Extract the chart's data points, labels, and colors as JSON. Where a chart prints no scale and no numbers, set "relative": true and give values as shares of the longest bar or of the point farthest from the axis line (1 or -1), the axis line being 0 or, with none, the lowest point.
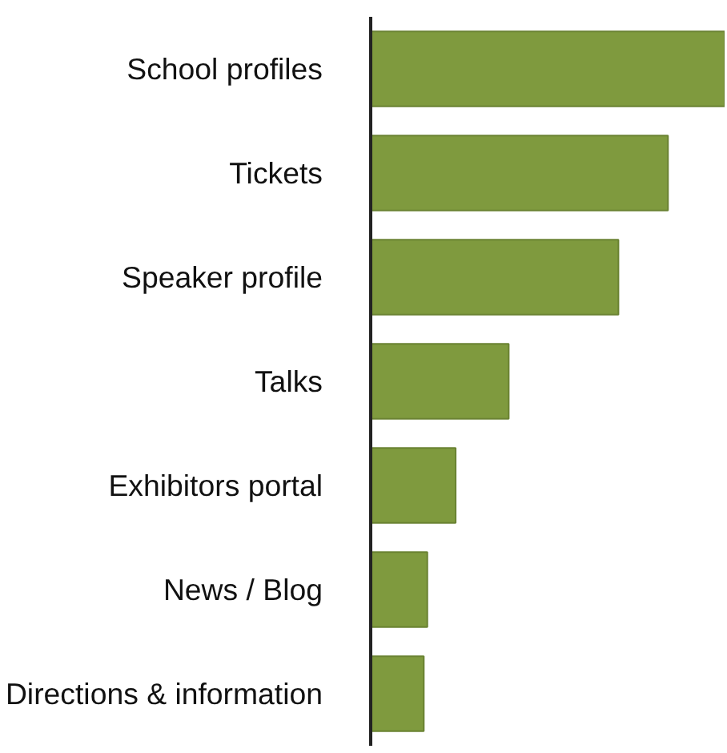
{
  "chart_data": {
    "type": "bar",
    "orientation": "horizontal",
    "relative": true,
    "categories": [
      "School profiles",
      "Tickets",
      "Speaker profile",
      "Talks",
      "Exhibitors portal",
      "News / Blog",
      "Directions & information"
    ],
    "values": [
      1,
      0.84,
      0.7,
      0.39,
      0.24,
      0.16,
      0.15
    ],
    "color": "#7f9a3e"
  }
}
